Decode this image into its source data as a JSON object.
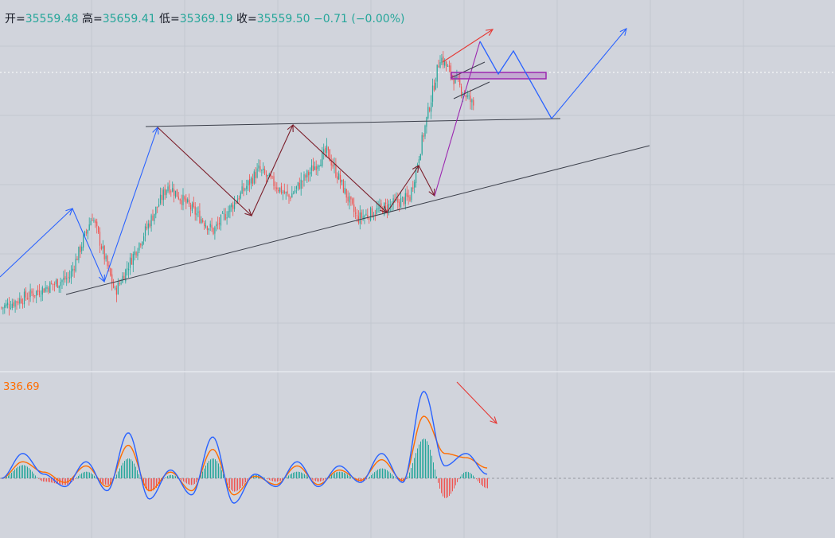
{
  "ohlc": {
    "open_label": "开=",
    "open": "35559.48",
    "high_label": "高=",
    "high": "35659.41",
    "low_label": "低=",
    "low": "35369.19",
    "close_label": "收=",
    "close": "35559.50",
    "change": "−0.71 (−0.00%)"
  },
  "macd": {
    "value_label": "336.69"
  },
  "colors": {
    "background": "#d1d4dc",
    "grid": "#c3c7d0",
    "up": "#26a69a",
    "down": "#ef5350",
    "macd_line": "#2962ff",
    "signal_line": "#ff6d00",
    "trendline": "#3b3f4a",
    "wave_blue": "#2962ff",
    "wave_dark": "#7b1e2a",
    "wave_red": "#e53935",
    "box": "#9c27b0"
  },
  "chart_data": [
    {
      "type": "candlestick",
      "title": "",
      "approx_close_path": [
        {
          "bar": 0,
          "close": 34900
        },
        {
          "bar": 45,
          "close": 35000
        },
        {
          "bar": 60,
          "close": 35200
        },
        {
          "bar": 75,
          "close": 34950
        },
        {
          "bar": 110,
          "close": 35300
        },
        {
          "bar": 140,
          "close": 35150
        },
        {
          "bar": 170,
          "close": 35350
        },
        {
          "bar": 190,
          "close": 35260
        },
        {
          "bar": 215,
          "close": 35410
        },
        {
          "bar": 235,
          "close": 35190
        },
        {
          "bar": 270,
          "close": 35260
        },
        {
          "bar": 290,
          "close": 35720
        },
        {
          "bar": 300,
          "close": 35640
        },
        {
          "bar": 312,
          "close": 35560
        }
      ],
      "last_close": 35559.5,
      "last_open": 35559.48,
      "last_high": 35659.41,
      "last_low": 35369.19
    },
    {
      "type": "line",
      "title": "MACD",
      "last_value": 336.69,
      "series": [
        {
          "values": [
            0,
            60,
            10,
            -20,
            40,
            -30,
            110,
            -50,
            20,
            -40,
            100,
            -60,
            10,
            -20,
            40,
            -20,
            30,
            -10,
            60,
            -10,
            210,
            30,
            60,
            10
          ]
        },
        {
          "values": [
            0,
            40,
            15,
            -10,
            30,
            -20,
            80,
            -30,
            15,
            -30,
            70,
            -40,
            5,
            -15,
            30,
            -15,
            20,
            -5,
            45,
            -5,
            150,
            60,
            50,
            25
          ]
        }
      ]
    }
  ]
}
